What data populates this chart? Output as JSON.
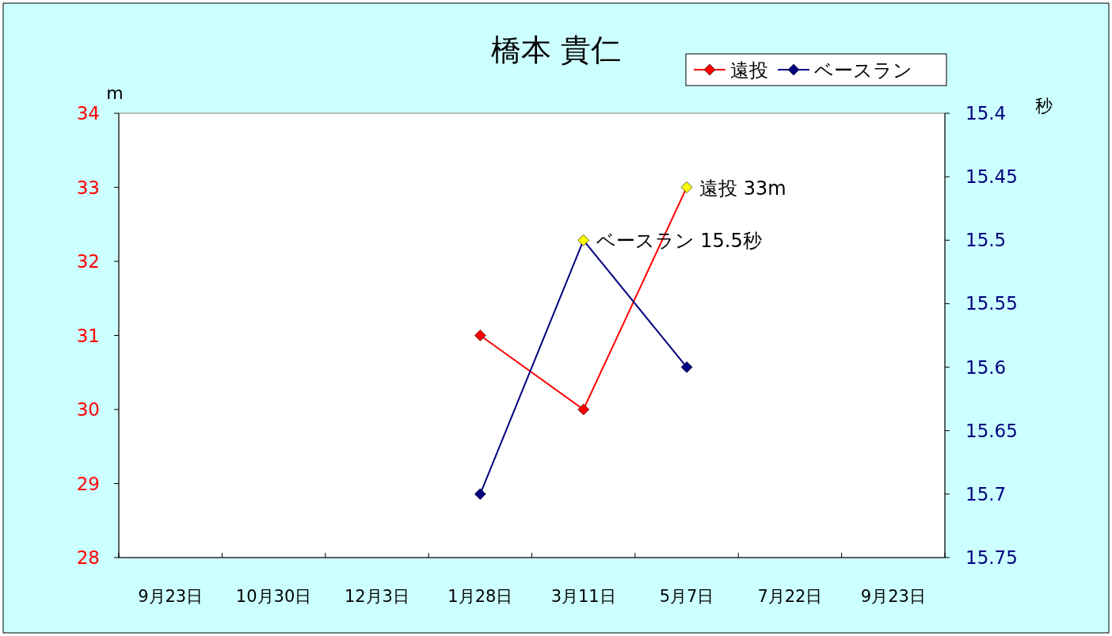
{
  "chart_data": {
    "type": "line",
    "title": "橋本 貴仁",
    "categories": [
      "9月23日",
      "10月30日",
      "12月3日",
      "1月28日",
      "3月11日",
      "5月7日",
      "7月22日",
      "9月23日"
    ],
    "series": [
      {
        "name": "遠投",
        "color": "#ff0000",
        "values": [
          null,
          null,
          null,
          31,
          30,
          33,
          null,
          null
        ],
        "colors": [
          null,
          null,
          null,
          "#ff0000",
          "#ff0000",
          "#ffff00",
          null,
          null
        ]
      },
      {
        "name": "ベースラン",
        "color": "#000080",
        "axis": "y2",
        "values": [
          null,
          null,
          null,
          15.7,
          15.5,
          15.6,
          null,
          null
        ],
        "colors": [
          null,
          null,
          null,
          "#000080",
          "#ffff00",
          "#000080",
          null,
          null
        ]
      }
    ],
    "ylabel": "m",
    "y2label": "秒",
    "ylim": [
      28,
      34
    ],
    "yticks": [
      28,
      29,
      30,
      31,
      32,
      33,
      34
    ],
    "y2lim": [
      15.75,
      15.4
    ],
    "y2ticks": [
      15.75,
      15.7,
      15.65,
      15.6,
      15.55,
      15.5,
      15.45,
      15.4
    ],
    "annotations": [
      "遠投 33m",
      "ベースラン 15.5秒"
    ],
    "legend": "top right",
    "marker": "diamond",
    "line_style": "solid",
    "grid": false
  }
}
